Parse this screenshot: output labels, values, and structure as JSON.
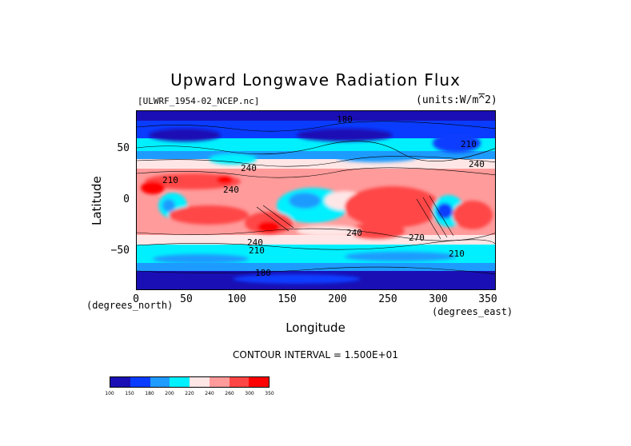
{
  "chart_data": {
    "type": "heatmap",
    "title": "Upward Longwave Radiation Flux",
    "source_label": "[ULWRF_1954-02_NCEP.nc]",
    "units_label": "(units:W/m^2)",
    "xlabel": "Longitude",
    "ylabel": "Latitude",
    "x_units_note": "(degrees_east)",
    "y_units_note": "(degrees_north)",
    "xlim": [
      0,
      357.5
    ],
    "ylim": [
      -90,
      90
    ],
    "x_ticks": [
      "0",
      "50",
      "100",
      "150",
      "200",
      "250",
      "300",
      "350"
    ],
    "y_ticks": [
      "50",
      "0",
      "−50"
    ],
    "contour_interval_text": "CONTOUR INTERVAL = 1.500E+01",
    "contour_labels": [
      "180",
      "210",
      "240",
      "240",
      "240",
      "240",
      "270",
      "210",
      "240",
      "210",
      "180",
      "210"
    ],
    "colorbar": {
      "levels": [
        "100",
        "150",
        "180",
        "200",
        "220",
        "240",
        "260",
        "300",
        "350"
      ],
      "colors": [
        "#1a0fb4",
        "#0a3cff",
        "#1e9bff",
        "#00f0ff",
        "#ffe6e6",
        "#ff9b9b",
        "#ff4646",
        "#ff0000"
      ]
    },
    "grid": false,
    "legend": "colorbar bottom-left"
  }
}
